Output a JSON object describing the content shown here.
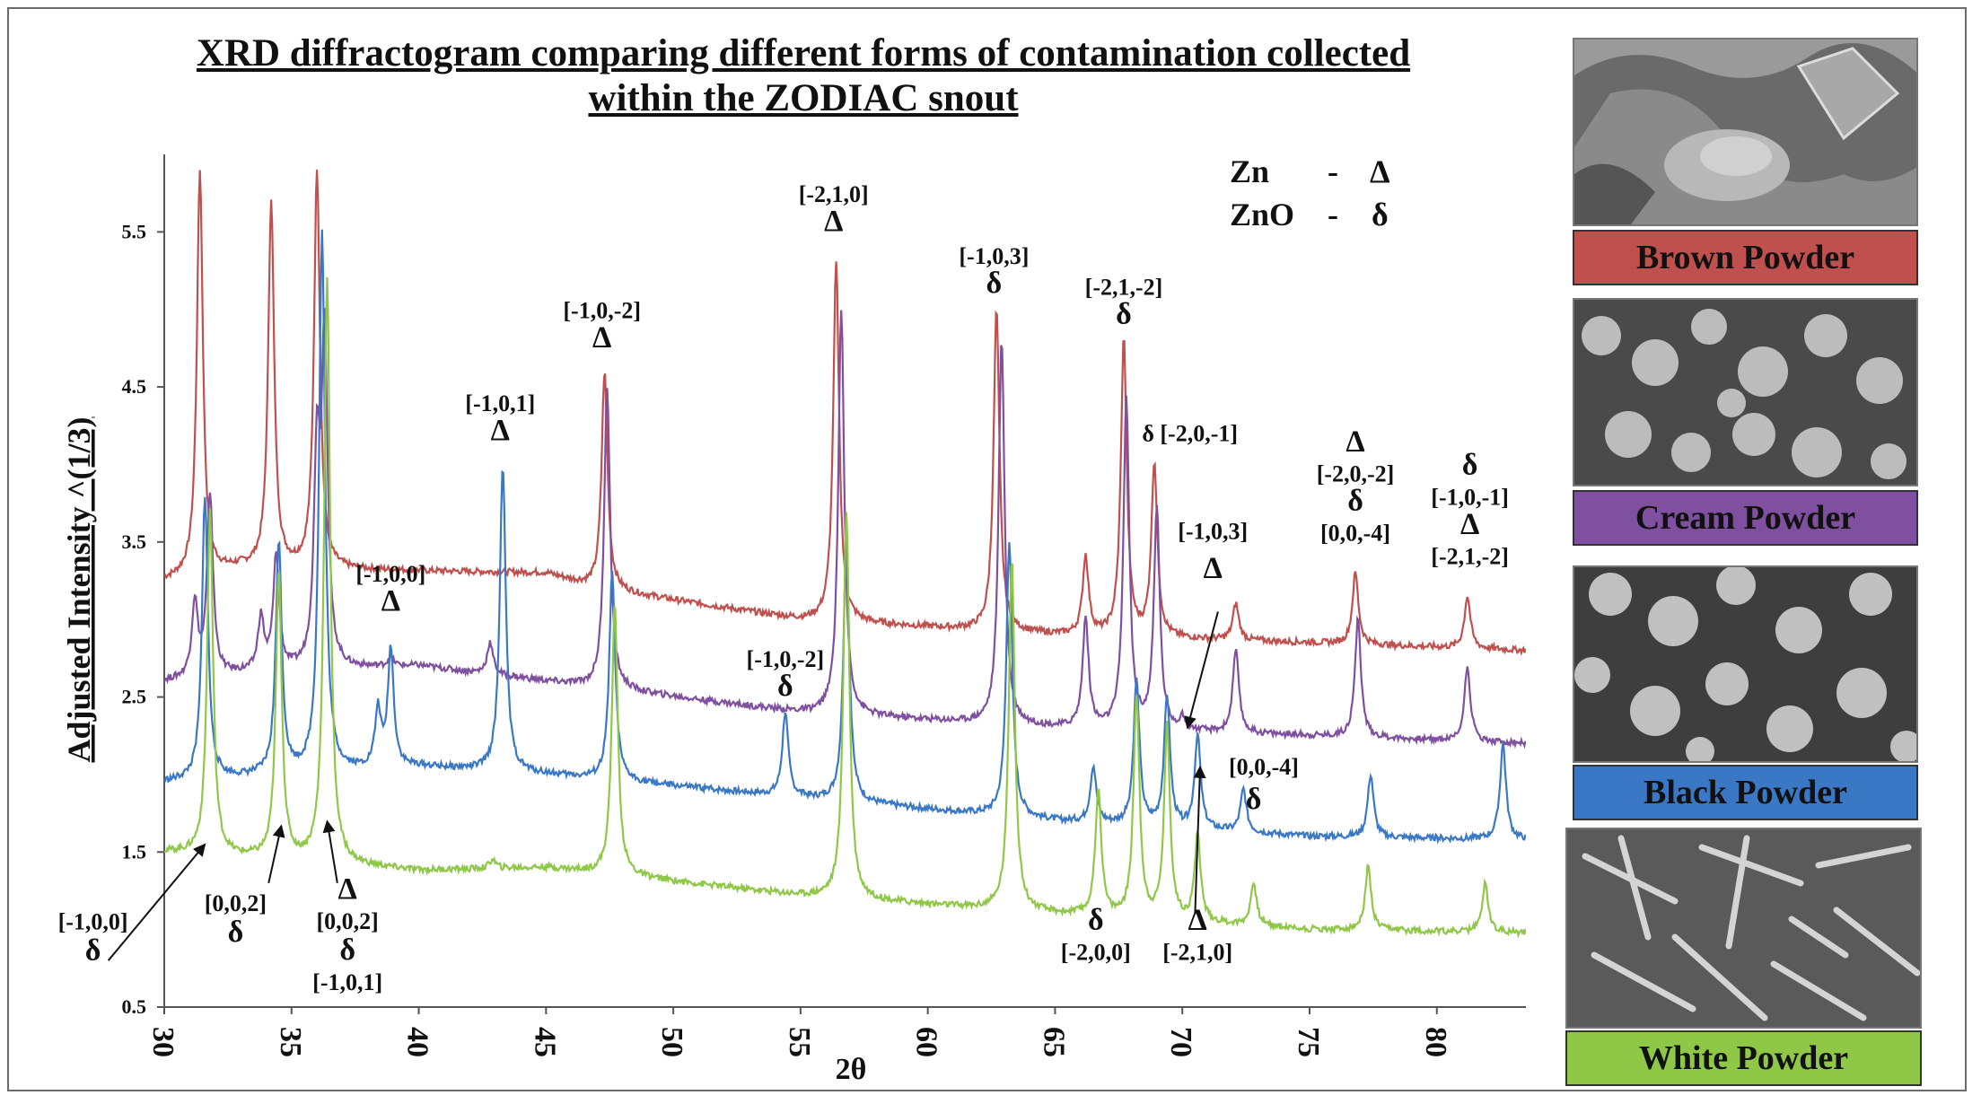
{
  "title_line1": "XRD diffractogram comparing different forms of contamination collected",
  "title_line2": "within the ZODIAC snout",
  "legend_key": [
    {
      "name": "Zn",
      "sep": "-",
      "symbol": "Δ"
    },
    {
      "name": "ZnO",
      "sep": "-",
      "symbol": "δ"
    }
  ],
  "panels": [
    {
      "label": "Brown Powder",
      "color": "#c0504d"
    },
    {
      "label": "Cream Powder",
      "color": "#7f4fa0"
    },
    {
      "label": "Black Powder",
      "color": "#3a78c6"
    },
    {
      "label": "White Powder",
      "color": "#8fc747"
    }
  ],
  "chart_data": {
    "type": "line",
    "xlabel": "2θ",
    "ylabel": "Adjusted Intensity ^(1/3)",
    "xlim": [
      30,
      83.5
    ],
    "ylim": [
      0.5,
      6
    ],
    "x_ticks": [
      30,
      35,
      40,
      45,
      50,
      55,
      60,
      65,
      70,
      75,
      80
    ],
    "y_ticks": [
      0.5,
      1.5,
      2.5,
      3.5,
      4.5,
      5.5
    ],
    "series": [
      {
        "name": "Brown Powder",
        "color": "#c0504d",
        "baseline": [
          [
            30,
            3.25
          ],
          [
            33,
            3.33
          ],
          [
            45,
            3.3
          ],
          [
            47,
            3.2
          ],
          [
            55,
            3.0
          ],
          [
            65,
            2.9
          ],
          [
            75,
            2.85
          ],
          [
            83.5,
            2.8
          ]
        ],
        "peaks": [
          [
            31.4,
            5.9,
            0.14
          ],
          [
            34.2,
            5.7,
            0.14
          ],
          [
            36.0,
            5.9,
            0.14
          ],
          [
            36.4,
            2.0,
            0.14
          ],
          [
            42.8,
            0.2,
            0.2
          ],
          [
            47.3,
            4.6,
            0.14
          ],
          [
            56.4,
            5.3,
            0.14
          ],
          [
            62.7,
            5.0,
            0.14
          ],
          [
            66.2,
            3.4,
            0.14
          ],
          [
            67.7,
            4.8,
            0.14
          ],
          [
            68.9,
            4.0,
            0.14
          ],
          [
            72.1,
            3.1,
            0.14
          ],
          [
            76.8,
            3.3,
            0.14
          ],
          [
            81.2,
            3.15,
            0.14
          ]
        ]
      },
      {
        "name": "Cream Powder",
        "color": "#7f4fa0",
        "baseline": [
          [
            30,
            2.6
          ],
          [
            33,
            2.65
          ],
          [
            40,
            2.7
          ],
          [
            50,
            2.5
          ],
          [
            55,
            2.4
          ],
          [
            65,
            2.3
          ],
          [
            75,
            2.25
          ],
          [
            83.5,
            2.2
          ]
        ],
        "peaks": [
          [
            31.2,
            3.1,
            0.14
          ],
          [
            31.8,
            3.8,
            0.14
          ],
          [
            33.8,
            3.0,
            0.14
          ],
          [
            34.4,
            3.4,
            0.14
          ],
          [
            36.0,
            4.0,
            0.14
          ],
          [
            36.3,
            4.8,
            0.14
          ],
          [
            38.9,
            2.75,
            0.14
          ],
          [
            42.8,
            2.85,
            0.14
          ],
          [
            47.4,
            4.5,
            0.14
          ],
          [
            56.6,
            5.0,
            0.14
          ],
          [
            62.9,
            4.8,
            0.14
          ],
          [
            66.2,
            3.0,
            0.14
          ],
          [
            67.8,
            4.4,
            0.14
          ],
          [
            69.0,
            3.7,
            0.14
          ],
          [
            70.0,
            2.35,
            0.14
          ],
          [
            72.1,
            2.8,
            0.14
          ],
          [
            76.9,
            3.0,
            0.14
          ],
          [
            81.2,
            2.7,
            0.14
          ]
        ]
      },
      {
        "name": "Black Powder",
        "color": "#3a78c6",
        "baseline": [
          [
            30,
            1.95
          ],
          [
            40,
            2.05
          ],
          [
            45,
            2.0
          ],
          [
            55,
            1.85
          ],
          [
            65,
            1.7
          ],
          [
            75,
            1.6
          ],
          [
            83,
            1.58
          ]
        ],
        "peaks": [
          [
            31.6,
            3.8,
            0.14
          ],
          [
            34.5,
            3.5,
            0.14
          ],
          [
            36.2,
            5.5,
            0.14
          ],
          [
            38.4,
            2.4,
            0.14
          ],
          [
            38.9,
            2.8,
            0.14
          ],
          [
            43.3,
            4.0,
            0.14
          ],
          [
            47.6,
            3.3,
            0.14
          ],
          [
            54.4,
            2.4,
            0.14
          ],
          [
            56.8,
            3.5,
            0.14
          ],
          [
            63.2,
            3.5,
            0.14
          ],
          [
            66.5,
            2.05,
            0.14
          ],
          [
            68.2,
            2.6,
            0.14
          ],
          [
            69.4,
            2.5,
            0.14
          ],
          [
            70.6,
            2.25,
            0.14
          ],
          [
            72.4,
            1.9,
            0.14
          ],
          [
            77.4,
            2.0,
            0.14
          ],
          [
            82.6,
            2.2,
            0.14
          ]
        ]
      },
      {
        "name": "White Powder",
        "color": "#8fc747",
        "baseline": [
          [
            30,
            1.5
          ],
          [
            40,
            1.38
          ],
          [
            45,
            1.4
          ],
          [
            55,
            1.22
          ],
          [
            65,
            1.1
          ],
          [
            75,
            1.0
          ],
          [
            83.5,
            0.98
          ]
        ],
        "peaks": [
          [
            31.8,
            3.7,
            0.14
          ],
          [
            34.5,
            3.3,
            0.14
          ],
          [
            36.4,
            5.2,
            0.14
          ],
          [
            42.9,
            1.45,
            0.14
          ],
          [
            47.7,
            3.1,
            0.14
          ],
          [
            56.8,
            3.7,
            0.14
          ],
          [
            63.3,
            3.4,
            0.14
          ],
          [
            66.7,
            1.9,
            0.14
          ],
          [
            68.2,
            2.5,
            0.14
          ],
          [
            69.4,
            2.3,
            0.14
          ],
          [
            70.6,
            1.6,
            0.14
          ],
          [
            72.8,
            1.3,
            0.14
          ],
          [
            77.3,
            1.4,
            0.14
          ],
          [
            81.9,
            1.3,
            0.14
          ]
        ]
      }
    ],
    "annotations": [
      {
        "x": 31.5,
        "y": 6.0,
        "lines": []
      },
      {
        "x": 35.9,
        "y": 6.0,
        "lines": []
      },
      {
        "x": 38.9,
        "y": 3.0,
        "lines": [
          "[-1,0,0]",
          "Δ"
        ]
      },
      {
        "x": 43.2,
        "y": 4.1,
        "lines": [
          "[-1,0,1]",
          "Δ"
        ]
      },
      {
        "x": 47.2,
        "y": 4.7,
        "lines": [
          "[-1,0,-2]",
          "Δ"
        ]
      },
      {
        "x": 54.4,
        "y": 2.45,
        "lines": [
          "[-1,0,-2]",
          "δ"
        ]
      },
      {
        "x": 56.3,
        "y": 5.45,
        "lines": [
          "[-2,1,0]",
          "Δ"
        ]
      },
      {
        "x": 62.6,
        "y": 5.05,
        "lines": [
          "[-1,0,3]",
          "δ"
        ]
      },
      {
        "x": 67.7,
        "y": 4.85,
        "lines": [
          "[-2,1,-2]",
          "δ"
        ]
      },
      {
        "x": 76.8,
        "y": 3.45,
        "lines": [
          "Δ",
          "[-2,0,-2]",
          "δ",
          "[0,0,-4]"
        ]
      },
      {
        "x": 81.3,
        "y": 3.3,
        "lines": [
          "δ",
          "[-1,0,-1]",
          "Δ",
          "[-2,1,-2]"
        ]
      }
    ],
    "side_labels": [
      {
        "text": "δ [-2,0,-1]",
        "x": 70.3,
        "y": 4.15
      },
      {
        "text": "[-1,0,3]",
        "x": 71.2,
        "y": 3.52
      },
      {
        "text": "Δ",
        "x": 71.2,
        "y": 3.27
      },
      {
        "text": "[0,0,-4]",
        "x": 73.2,
        "y": 2.0
      },
      {
        "text": "δ",
        "x": 72.8,
        "y": 1.78
      }
    ],
    "bottom_labels": [
      {
        "lines": [
          "[-1,0,0]",
          "δ"
        ],
        "x": 27.2,
        "y": 1.0
      },
      {
        "lines": [
          "[0,0,2]",
          "δ"
        ],
        "x": 32.8,
        "y": 1.12
      },
      {
        "lines": [
          "Δ",
          "[0,0,2]",
          "δ",
          "[-1,0,1]"
        ],
        "x": 37.2,
        "y": 1.2
      },
      {
        "lines": [
          "δ",
          "[-2,0,0]"
        ],
        "x": 66.6,
        "y": 1.0
      },
      {
        "lines": [
          "Δ",
          "[-2,1,0]"
        ],
        "x": 70.6,
        "y": 1.0
      }
    ],
    "arrows": [
      {
        "from": [
          27.8,
          0.8
        ],
        "to": [
          31.6,
          1.55
        ]
      },
      {
        "from": [
          34.1,
          1.3
        ],
        "to": [
          34.6,
          1.67
        ]
      },
      {
        "from": [
          36.8,
          1.3
        ],
        "to": [
          36.4,
          1.7
        ]
      },
      {
        "from": [
          71.4,
          3.05
        ],
        "to": [
          70.2,
          2.3
        ]
      },
      {
        "from": [
          70.5,
          1.1
        ],
        "to": [
          70.7,
          2.05
        ]
      }
    ]
  }
}
